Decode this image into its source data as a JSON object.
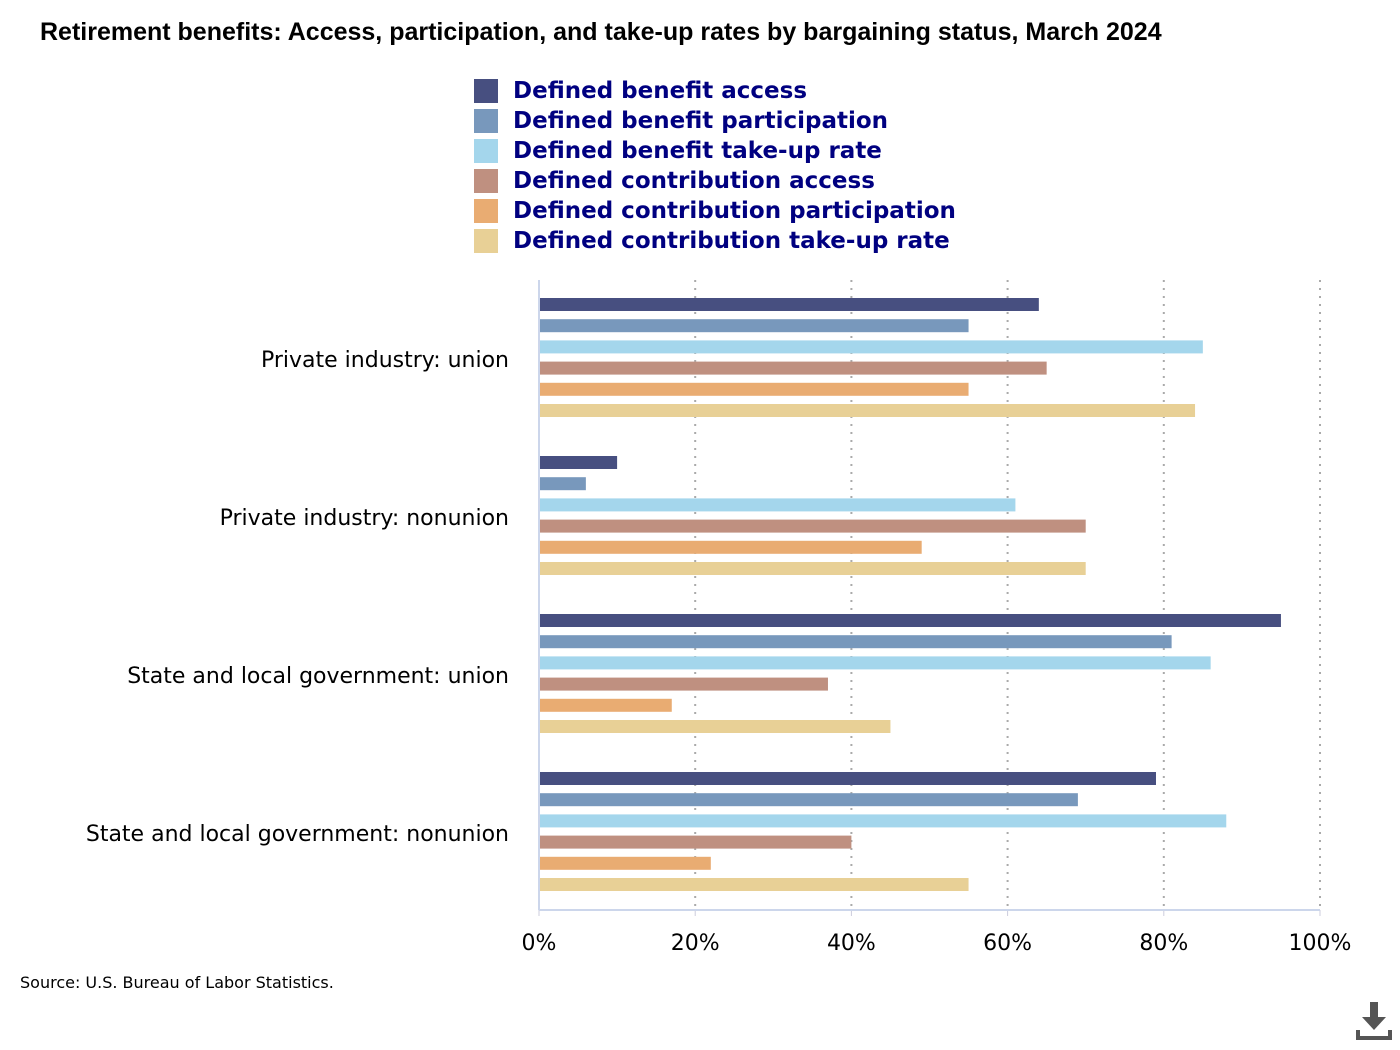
{
  "chart_data": {
    "type": "bar",
    "orientation": "horizontal",
    "title": "Retirement benefits: Access, participation, and take-up rates by bargaining status, March 2024",
    "categories": [
      "Private industry: union",
      "Private industry: nonunion",
      "State and local government: union",
      "State and local government: nonunion"
    ],
    "series": [
      {
        "name": "Defined benefit access",
        "color": "#474f80",
        "values": [
          64,
          10,
          95,
          79
        ]
      },
      {
        "name": "Defined benefit participation",
        "color": "#7898bc",
        "values": [
          55,
          6,
          81,
          69
        ]
      },
      {
        "name": "Defined benefit take-up rate",
        "color": "#a4d6ec",
        "values": [
          85,
          61,
          86,
          88
        ]
      },
      {
        "name": "Defined contribution access",
        "color": "#bf9080",
        "values": [
          65,
          70,
          37,
          40
        ]
      },
      {
        "name": "Defined contribution participation",
        "color": "#e9ac72",
        "values": [
          55,
          49,
          17,
          22
        ]
      },
      {
        "name": "Defined contribution take-up rate",
        "color": "#e8d096",
        "values": [
          84,
          70,
          45,
          55
        ]
      }
    ],
    "xlim": [
      0,
      100
    ],
    "xticks": [
      "0%",
      "20%",
      "40%",
      "60%",
      "80%",
      "100%"
    ],
    "xlabel": "",
    "ylabel": "",
    "grid": "vertical dotted",
    "legend_position": "top"
  },
  "source": "Source: U.S. Bureau of Labor Statistics.",
  "icons": {
    "download": "download-icon"
  }
}
